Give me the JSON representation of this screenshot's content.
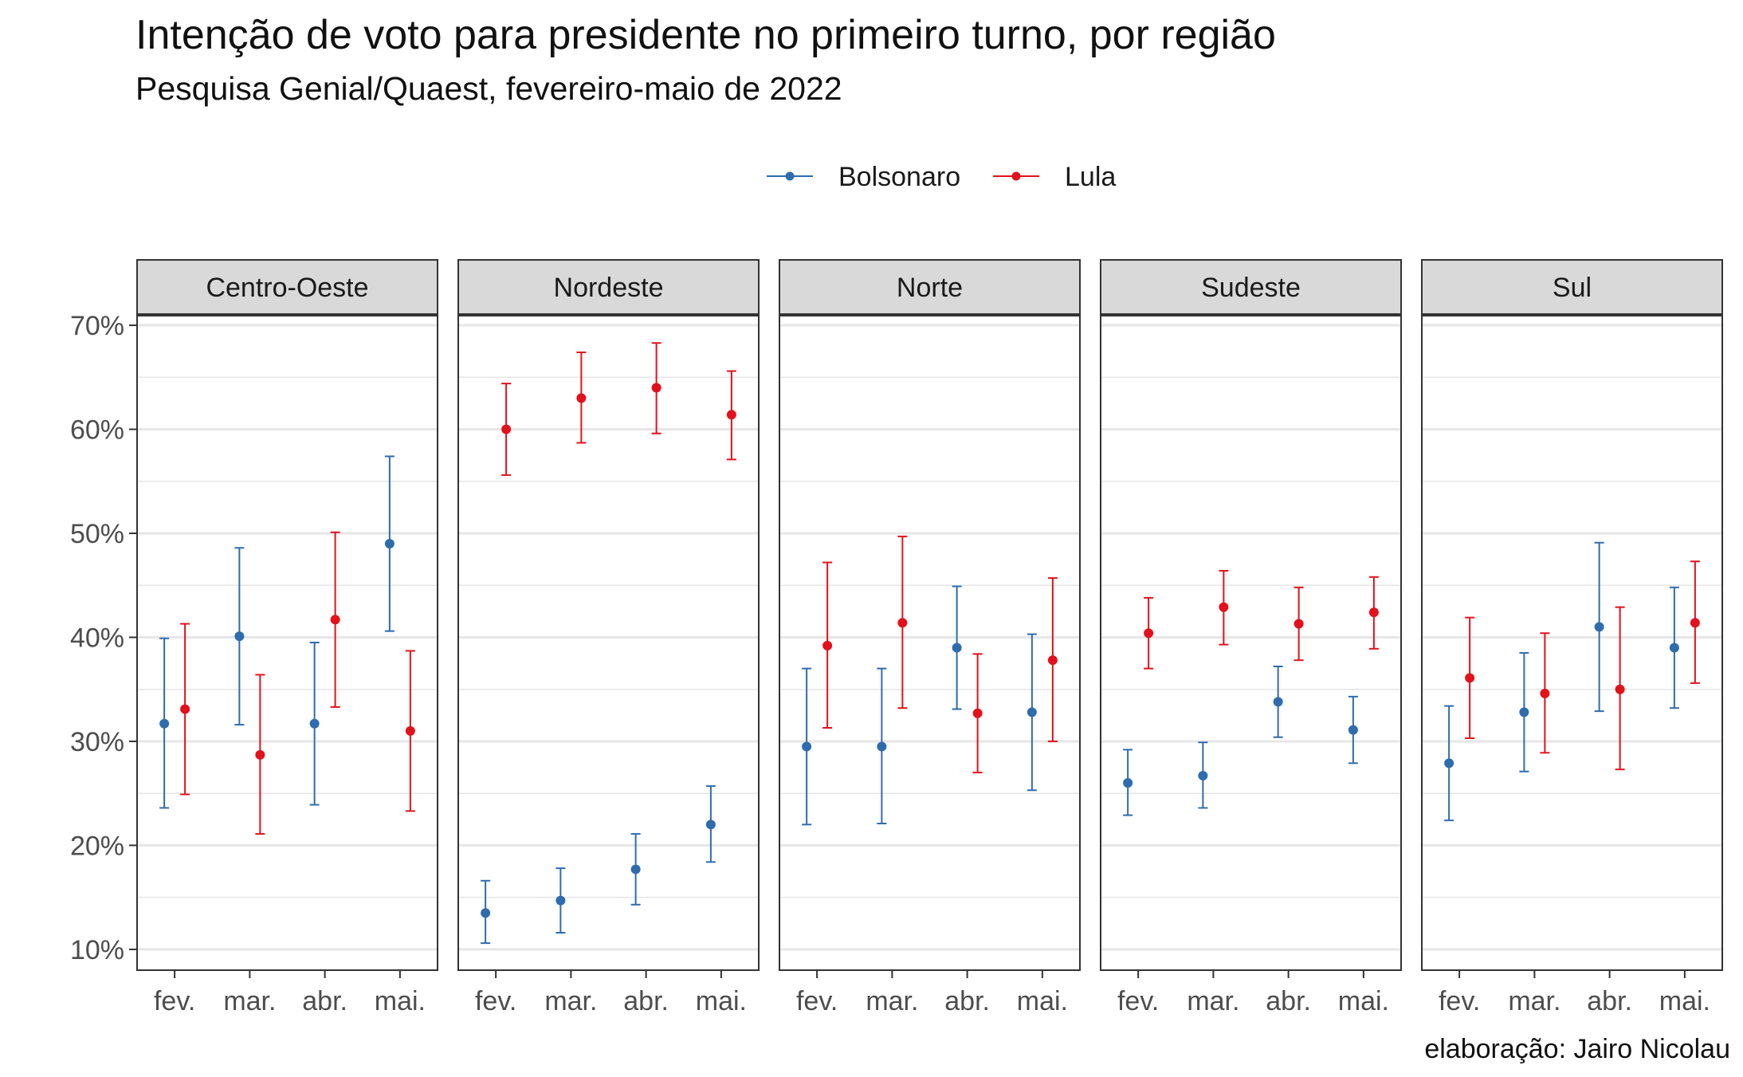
{
  "title": "Intenção de voto para presidente no primeiro turno,  por região",
  "subtitle": "Pesquisa Genial/Quaest, fevereiro-maio de 2022",
  "caption": "elaboração: Jairo Nicolau",
  "colors": {
    "Bolsonaro": "#2f6cae",
    "Lula": "#e3111b",
    "strip_bg": "#d9d9d9",
    "grid": "#e6e6e6"
  },
  "chart_data": {
    "type": "scatter",
    "subtype": "point-with-errorbars, faceted by region",
    "x_categories": [
      "fev.",
      "mar.",
      "abr.",
      "mai."
    ],
    "y_ticks": [
      "10%",
      "20%",
      "30%",
      "40%",
      "50%",
      "60%",
      "70%"
    ],
    "y_tick_values": [
      10,
      20,
      30,
      40,
      50,
      60,
      70
    ],
    "ylim": [
      8,
      71
    ],
    "grid": true,
    "legend_position": "top",
    "legend": [
      "Bolsonaro",
      "Lula"
    ],
    "facets": [
      {
        "name": "Centro-Oeste",
        "series": [
          {
            "name": "Bolsonaro",
            "values": [
              31.7,
              40.1,
              31.7,
              49.0
            ],
            "lower": [
              23.6,
              31.6,
              23.9,
              40.6
            ],
            "upper": [
              39.9,
              48.6,
              39.5,
              57.4
            ]
          },
          {
            "name": "Lula",
            "values": [
              33.1,
              28.7,
              41.7,
              31.0
            ],
            "lower": [
              24.9,
              21.1,
              33.3,
              23.3
            ],
            "upper": [
              41.3,
              36.4,
              50.1,
              38.7
            ]
          }
        ]
      },
      {
        "name": "Nordeste",
        "series": [
          {
            "name": "Bolsonaro",
            "values": [
              13.5,
              14.7,
              17.7,
              22.0
            ],
            "lower": [
              10.6,
              11.6,
              14.3,
              18.4
            ],
            "upper": [
              16.6,
              17.8,
              21.1,
              25.7
            ]
          },
          {
            "name": "Lula",
            "values": [
              60.0,
              63.0,
              64.0,
              61.4
            ],
            "lower": [
              55.6,
              58.7,
              59.6,
              57.1
            ],
            "upper": [
              64.4,
              67.4,
              68.3,
              65.6
            ]
          }
        ]
      },
      {
        "name": "Norte",
        "series": [
          {
            "name": "Bolsonaro",
            "values": [
              29.5,
              29.5,
              39.0,
              32.8
            ],
            "lower": [
              22.0,
              22.1,
              33.1,
              25.3
            ],
            "upper": [
              37.0,
              37.0,
              44.9,
              40.3
            ]
          },
          {
            "name": "Lula",
            "values": [
              39.2,
              41.4,
              32.7,
              37.8
            ],
            "lower": [
              31.3,
              33.2,
              27.0,
              30.0
            ],
            "upper": [
              47.2,
              49.7,
              38.4,
              45.7
            ]
          }
        ]
      },
      {
        "name": "Sudeste",
        "series": [
          {
            "name": "Bolsonaro",
            "values": [
              26.0,
              26.7,
              33.8,
              31.1
            ],
            "lower": [
              22.9,
              23.6,
              30.4,
              27.9
            ],
            "upper": [
              29.2,
              29.9,
              37.2,
              34.3
            ]
          },
          {
            "name": "Lula",
            "values": [
              40.4,
              42.9,
              41.3,
              42.4
            ],
            "lower": [
              37.0,
              39.3,
              37.8,
              38.9
            ],
            "upper": [
              43.8,
              46.4,
              44.8,
              45.8
            ]
          }
        ]
      },
      {
        "name": "Sul",
        "series": [
          {
            "name": "Bolsonaro",
            "values": [
              27.9,
              32.8,
              41.0,
              39.0
            ],
            "lower": [
              22.4,
              27.1,
              32.9,
              33.2
            ],
            "upper": [
              33.4,
              38.5,
              49.1,
              44.8
            ]
          },
          {
            "name": "Lula",
            "values": [
              36.1,
              34.6,
              35.0,
              41.4
            ],
            "lower": [
              30.3,
              28.9,
              27.3,
              35.6
            ],
            "upper": [
              41.9,
              40.4,
              42.9,
              47.3
            ]
          }
        ]
      }
    ]
  }
}
